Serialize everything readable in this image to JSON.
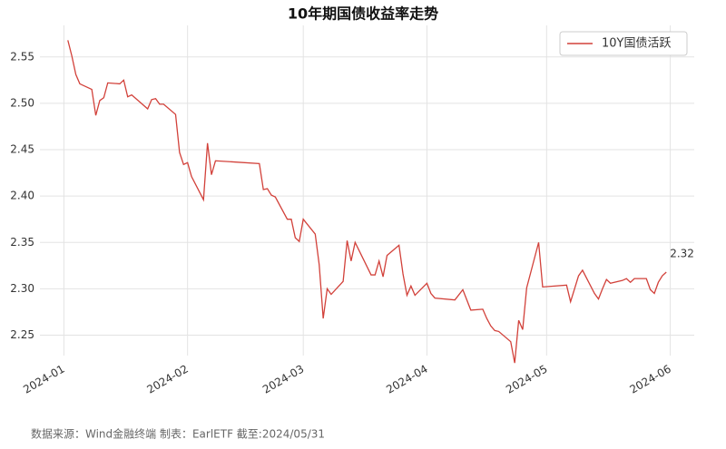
{
  "chart_data": {
    "type": "line",
    "title": "10年期国债收益率走势",
    "footnote": "数据来源：Wind金融终端 制表：EarlETF 截至:2024/05/31",
    "x": [
      2,
      3,
      4,
      5,
      8,
      9,
      10,
      11,
      12,
      15,
      16,
      17,
      18,
      22,
      23,
      24,
      25,
      26,
      29,
      30,
      31,
      32,
      33,
      36,
      37,
      38,
      39,
      50,
      51,
      52,
      53,
      54,
      57,
      58,
      59,
      60,
      61,
      64,
      65,
      66,
      67,
      68,
      71,
      72,
      73,
      74,
      78,
      79,
      80,
      81,
      82,
      85,
      86,
      87,
      88,
      89,
      92,
      93,
      94,
      99,
      101,
      103,
      106,
      107,
      108,
      109,
      110,
      113,
      114,
      115,
      116,
      117,
      120,
      121,
      127,
      128,
      129,
      130,
      131,
      134,
      135,
      136,
      137,
      138,
      141,
      142,
      143,
      144,
      147,
      148,
      149,
      150,
      151,
      152
    ],
    "series": [
      {
        "name": "10Y国债活跃",
        "color": "#d2413a",
        "values": [
          2.568,
          2.551,
          2.531,
          2.521,
          2.515,
          2.487,
          2.503,
          2.506,
          2.522,
          2.521,
          2.525,
          2.507,
          2.509,
          2.494,
          2.504,
          2.505,
          2.499,
          2.499,
          2.488,
          2.447,
          2.434,
          2.436,
          2.421,
          2.396,
          2.457,
          2.423,
          2.438,
          2.435,
          2.407,
          2.408,
          2.401,
          2.399,
          2.375,
          2.375,
          2.355,
          2.351,
          2.375,
          2.359,
          2.326,
          2.268,
          2.3,
          2.294,
          2.308,
          2.352,
          2.33,
          2.35,
          2.315,
          2.315,
          2.33,
          2.313,
          2.336,
          2.347,
          2.316,
          2.293,
          2.303,
          2.293,
          2.306,
          2.295,
          2.29,
          2.288,
          2.299,
          2.277,
          2.278,
          2.268,
          2.26,
          2.255,
          2.254,
          2.243,
          2.22,
          2.266,
          2.256,
          2.301,
          2.35,
          2.302,
          2.304,
          2.286,
          2.3,
          2.314,
          2.32,
          2.295,
          2.289,
          2.3,
          2.31,
          2.306,
          2.309,
          2.311,
          2.307,
          2.311,
          2.311,
          2.299,
          2.295,
          2.307,
          2.314,
          2.318
        ],
        "value_labels": [
          null,
          null,
          null,
          null,
          null,
          null,
          null,
          null,
          null,
          null,
          null,
          null,
          null,
          null,
          null,
          null,
          null,
          null,
          null,
          null,
          null,
          null,
          null,
          null,
          null,
          null,
          null,
          null,
          null,
          null,
          null,
          null,
          null,
          null,
          null,
          null,
          null,
          null,
          null,
          null,
          null,
          null,
          null,
          null,
          null,
          null,
          null,
          null,
          null,
          null,
          null,
          null,
          null,
          null,
          null,
          null,
          null,
          null,
          null,
          null,
          null,
          null,
          null,
          null,
          null,
          null,
          null,
          null,
          null,
          null,
          null,
          null,
          null,
          null,
          null,
          null,
          null,
          null,
          null,
          null,
          null,
          null,
          null,
          null,
          null,
          null,
          null,
          null,
          null,
          null,
          null,
          null,
          null,
          "2.32"
        ]
      }
    ],
    "xlim": [
      -5,
      159
    ],
    "xticks": [
      {
        "value": 1,
        "label": "2024-01"
      },
      {
        "value": 32,
        "label": "2024-02"
      },
      {
        "value": 61,
        "label": "2024-03"
      },
      {
        "value": 92,
        "label": "2024-04"
      },
      {
        "value": 122,
        "label": "2024-05"
      },
      {
        "value": 153,
        "label": "2024-06"
      }
    ],
    "ylim": [
      2.228,
      2.584
    ],
    "yticks": [
      2.25,
      {
        "value": 2.3,
        "label": "2.30"
      },
      2.35,
      {
        "value": 2.4,
        "label": "2.40"
      },
      2.45,
      {
        "value": 2.5,
        "label": "2.50"
      },
      2.55
    ],
    "grid": true,
    "legend": "upper right"
  }
}
